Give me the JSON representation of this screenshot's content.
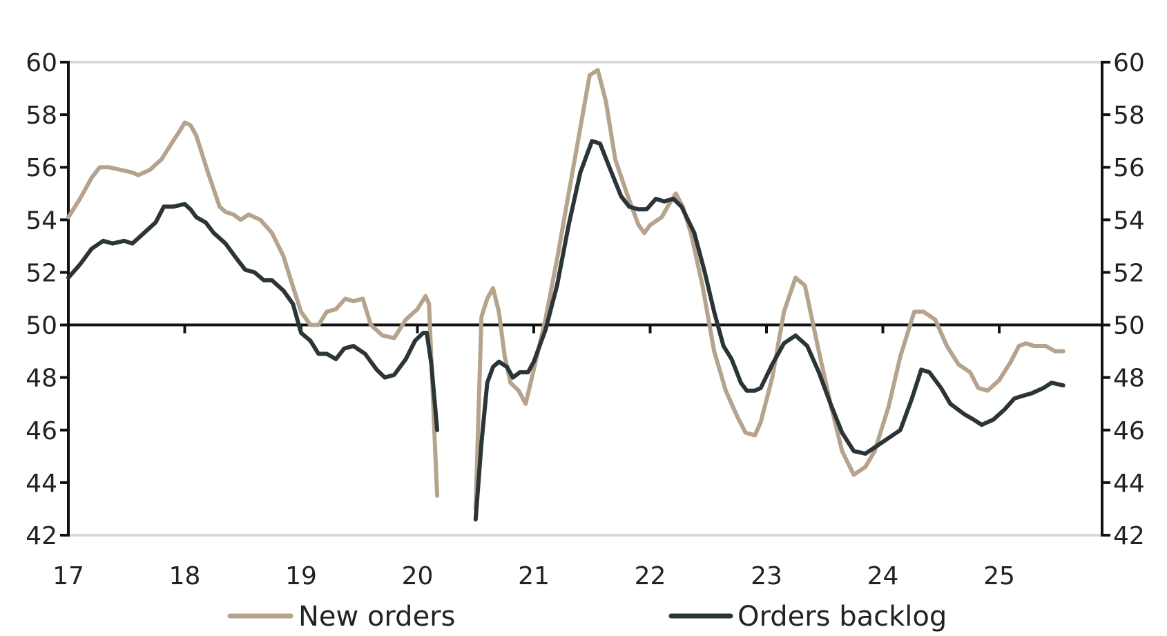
{
  "chart_data": {
    "type": "line",
    "x_tick_labels": [
      "17",
      "18",
      "19",
      "20",
      "21",
      "22",
      "23",
      "24",
      "25"
    ],
    "y_left_ticks": [
      "42",
      "44",
      "46",
      "48",
      "50",
      "52",
      "54",
      "56",
      "58",
      "60"
    ],
    "y_right_ticks": [
      "42",
      "44",
      "46",
      "48",
      "50",
      "52",
      "54",
      "56",
      "58",
      "60"
    ],
    "ylim": [
      42,
      60
    ],
    "xlim": [
      2017.0,
      2026.0
    ],
    "reference_line": 50,
    "grid": "horizontal at top and bottom only",
    "legend_position": "bottom",
    "series": [
      {
        "name": "New orders",
        "color": "#b5a38d",
        "points": [
          [
            2017.0,
            54.1
          ],
          [
            2017.1,
            54.8
          ],
          [
            2017.2,
            55.6
          ],
          [
            2017.27,
            56.0
          ],
          [
            2017.35,
            56.0
          ],
          [
            2017.45,
            55.9
          ],
          [
            2017.55,
            55.8
          ],
          [
            2017.6,
            55.7
          ],
          [
            2017.7,
            55.9
          ],
          [
            2017.8,
            56.3
          ],
          [
            2017.9,
            57.0
          ],
          [
            2017.96,
            57.4
          ],
          [
            2018.0,
            57.7
          ],
          [
            2018.05,
            57.6
          ],
          [
            2018.1,
            57.2
          ],
          [
            2018.2,
            55.8
          ],
          [
            2018.3,
            54.5
          ],
          [
            2018.35,
            54.3
          ],
          [
            2018.42,
            54.2
          ],
          [
            2018.48,
            54.0
          ],
          [
            2018.55,
            54.2
          ],
          [
            2018.65,
            54.0
          ],
          [
            2018.75,
            53.5
          ],
          [
            2018.85,
            52.6
          ],
          [
            2018.92,
            51.6
          ],
          [
            2019.0,
            50.5
          ],
          [
            2019.08,
            50.0
          ],
          [
            2019.15,
            50.0
          ],
          [
            2019.22,
            50.5
          ],
          [
            2019.3,
            50.6
          ],
          [
            2019.38,
            51.0
          ],
          [
            2019.45,
            50.9
          ],
          [
            2019.53,
            51.0
          ],
          [
            2019.6,
            50.0
          ],
          [
            2019.7,
            49.6
          ],
          [
            2019.8,
            49.5
          ],
          [
            2019.9,
            50.2
          ],
          [
            2020.0,
            50.6
          ],
          [
            2020.07,
            51.1
          ],
          [
            2020.1,
            50.8
          ],
          [
            2020.14,
            46.5
          ],
          [
            2020.17,
            43.5
          ],
          [
            2020.5,
            43.0
          ],
          [
            2020.55,
            50.3
          ],
          [
            2020.6,
            51.0
          ],
          [
            2020.65,
            51.4
          ],
          [
            2020.7,
            50.5
          ],
          [
            2020.75,
            48.8
          ],
          [
            2020.8,
            47.8
          ],
          [
            2020.87,
            47.5
          ],
          [
            2020.93,
            47.0
          ],
          [
            2021.0,
            48.3
          ],
          [
            2021.1,
            50.2
          ],
          [
            2021.2,
            52.5
          ],
          [
            2021.3,
            55.0
          ],
          [
            2021.4,
            57.5
          ],
          [
            2021.48,
            59.5
          ],
          [
            2021.55,
            59.7
          ],
          [
            2021.62,
            58.5
          ],
          [
            2021.7,
            56.3
          ],
          [
            2021.8,
            55.0
          ],
          [
            2021.9,
            53.8
          ],
          [
            2021.95,
            53.5
          ],
          [
            2022.0,
            53.8
          ],
          [
            2022.1,
            54.1
          ],
          [
            2022.15,
            54.5
          ],
          [
            2022.22,
            55.0
          ],
          [
            2022.28,
            54.5
          ],
          [
            2022.35,
            53.5
          ],
          [
            2022.45,
            51.5
          ],
          [
            2022.55,
            49.0
          ],
          [
            2022.65,
            47.5
          ],
          [
            2022.75,
            46.5
          ],
          [
            2022.82,
            45.9
          ],
          [
            2022.9,
            45.8
          ],
          [
            2022.95,
            46.3
          ],
          [
            2023.05,
            48.0
          ],
          [
            2023.15,
            50.5
          ],
          [
            2023.25,
            51.8
          ],
          [
            2023.33,
            51.5
          ],
          [
            2023.45,
            49.0
          ],
          [
            2023.55,
            47.0
          ],
          [
            2023.65,
            45.2
          ],
          [
            2023.75,
            44.3
          ],
          [
            2023.85,
            44.6
          ],
          [
            2023.93,
            45.2
          ],
          [
            2024.05,
            46.9
          ],
          [
            2024.15,
            48.8
          ],
          [
            2024.27,
            50.5
          ],
          [
            2024.35,
            50.5
          ],
          [
            2024.45,
            50.2
          ],
          [
            2024.55,
            49.2
          ],
          [
            2024.65,
            48.5
          ],
          [
            2024.75,
            48.2
          ],
          [
            2024.82,
            47.6
          ],
          [
            2024.9,
            47.5
          ],
          [
            2025.0,
            47.9
          ],
          [
            2025.1,
            48.6
          ],
          [
            2025.17,
            49.2
          ],
          [
            2025.23,
            49.3
          ],
          [
            2025.3,
            49.2
          ],
          [
            2025.4,
            49.2
          ],
          [
            2025.48,
            49.0
          ],
          [
            2025.55,
            49.0
          ]
        ]
      },
      {
        "name": "Orders backlog",
        "color": "#2b3538",
        "points": [
          [
            2017.0,
            51.8
          ],
          [
            2017.1,
            52.3
          ],
          [
            2017.2,
            52.9
          ],
          [
            2017.3,
            53.2
          ],
          [
            2017.38,
            53.1
          ],
          [
            2017.48,
            53.2
          ],
          [
            2017.55,
            53.1
          ],
          [
            2017.65,
            53.5
          ],
          [
            2017.75,
            53.9
          ],
          [
            2017.82,
            54.5
          ],
          [
            2017.9,
            54.5
          ],
          [
            2018.0,
            54.6
          ],
          [
            2018.05,
            54.4
          ],
          [
            2018.1,
            54.1
          ],
          [
            2018.18,
            53.9
          ],
          [
            2018.25,
            53.5
          ],
          [
            2018.35,
            53.1
          ],
          [
            2018.45,
            52.5
          ],
          [
            2018.52,
            52.1
          ],
          [
            2018.6,
            52.0
          ],
          [
            2018.68,
            51.7
          ],
          [
            2018.75,
            51.7
          ],
          [
            2018.85,
            51.3
          ],
          [
            2018.93,
            50.8
          ],
          [
            2019.0,
            49.7
          ],
          [
            2019.08,
            49.4
          ],
          [
            2019.15,
            48.9
          ],
          [
            2019.22,
            48.9
          ],
          [
            2019.3,
            48.7
          ],
          [
            2019.37,
            49.1
          ],
          [
            2019.45,
            49.2
          ],
          [
            2019.55,
            48.9
          ],
          [
            2019.65,
            48.3
          ],
          [
            2019.72,
            48.0
          ],
          [
            2019.8,
            48.1
          ],
          [
            2019.9,
            48.7
          ],
          [
            2019.98,
            49.4
          ],
          [
            2020.05,
            49.7
          ],
          [
            2020.08,
            49.7
          ],
          [
            2020.12,
            48.5
          ],
          [
            2020.17,
            46.0
          ],
          [
            2020.5,
            42.6
          ],
          [
            2020.55,
            45.5
          ],
          [
            2020.6,
            47.8
          ],
          [
            2020.65,
            48.4
          ],
          [
            2020.7,
            48.6
          ],
          [
            2020.77,
            48.4
          ],
          [
            2020.82,
            48.0
          ],
          [
            2020.88,
            48.2
          ],
          [
            2020.95,
            48.2
          ],
          [
            2021.0,
            48.6
          ],
          [
            2021.1,
            49.8
          ],
          [
            2021.2,
            51.5
          ],
          [
            2021.3,
            53.8
          ],
          [
            2021.4,
            55.8
          ],
          [
            2021.5,
            57.0
          ],
          [
            2021.57,
            56.9
          ],
          [
            2021.65,
            56.0
          ],
          [
            2021.75,
            54.9
          ],
          [
            2021.82,
            54.5
          ],
          [
            2021.9,
            54.4
          ],
          [
            2021.97,
            54.4
          ],
          [
            2022.05,
            54.8
          ],
          [
            2022.12,
            54.7
          ],
          [
            2022.2,
            54.8
          ],
          [
            2022.27,
            54.5
          ],
          [
            2022.38,
            53.5
          ],
          [
            2022.47,
            52.0
          ],
          [
            2022.55,
            50.5
          ],
          [
            2022.63,
            49.2
          ],
          [
            2022.7,
            48.7
          ],
          [
            2022.78,
            47.8
          ],
          [
            2022.83,
            47.5
          ],
          [
            2022.9,
            47.5
          ],
          [
            2022.95,
            47.6
          ],
          [
            2023.05,
            48.5
          ],
          [
            2023.15,
            49.3
          ],
          [
            2023.25,
            49.6
          ],
          [
            2023.35,
            49.2
          ],
          [
            2023.45,
            48.2
          ],
          [
            2023.55,
            47.0
          ],
          [
            2023.65,
            45.9
          ],
          [
            2023.75,
            45.2
          ],
          [
            2023.85,
            45.1
          ],
          [
            2023.95,
            45.4
          ],
          [
            2024.05,
            45.7
          ],
          [
            2024.15,
            46.0
          ],
          [
            2024.25,
            47.2
          ],
          [
            2024.33,
            48.3
          ],
          [
            2024.4,
            48.2
          ],
          [
            2024.5,
            47.6
          ],
          [
            2024.58,
            47.0
          ],
          [
            2024.7,
            46.6
          ],
          [
            2024.78,
            46.4
          ],
          [
            2024.85,
            46.2
          ],
          [
            2024.95,
            46.4
          ],
          [
            2025.05,
            46.8
          ],
          [
            2025.13,
            47.2
          ],
          [
            2025.2,
            47.3
          ],
          [
            2025.28,
            47.4
          ],
          [
            2025.38,
            47.6
          ],
          [
            2025.45,
            47.8
          ],
          [
            2025.55,
            47.7
          ]
        ]
      }
    ]
  }
}
